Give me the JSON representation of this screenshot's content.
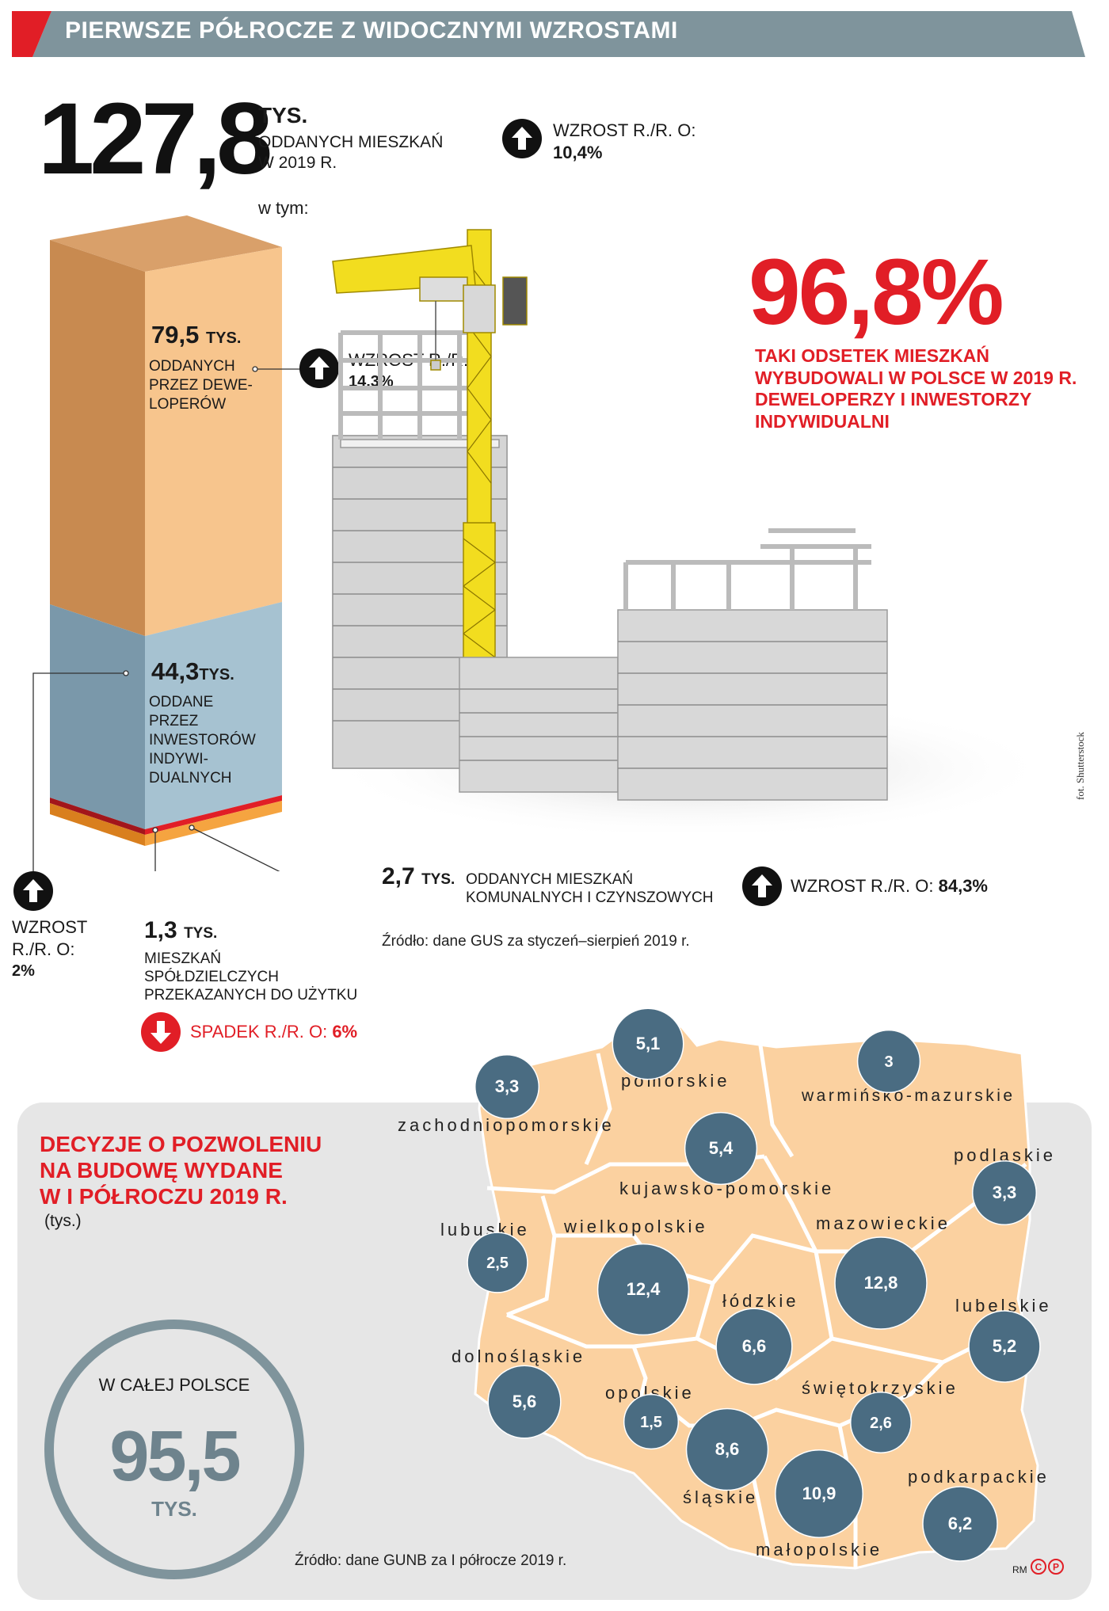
{
  "header": {
    "title": "PIERWSZE PÓŁROCZE Z WIDOCZNYMI WZROSTAMI"
  },
  "total": {
    "value": "127,8",
    "unit": "TYS.",
    "caption_line1": "ODDANYCH MIESZKAŃ",
    "caption_line2": "W 2019 R.",
    "growth_label": "WZROST R./R. O:",
    "growth_value": "10,4%",
    "including": "w tym:"
  },
  "developers": {
    "value": "79,5",
    "unit": "TYS.",
    "line1": "ODDANYCH",
    "line2": "PRZEZ DEWE-",
    "line3": "LOPERÓW",
    "growth_label": "WZROST R./R. O:",
    "growth_value": "14,3%"
  },
  "individual": {
    "value": "44,3",
    "unit": "TYS.",
    "line1": "ODDANE",
    "line2": "PRZEZ",
    "line3": "INWESTORÓW",
    "line4": "INDYWI-",
    "line5": "DUALNYCH",
    "growth_line1": "WZROST",
    "growth_line2": "R./R. O:",
    "growth_value": "2%"
  },
  "cooperative": {
    "value": "1,3",
    "unit": "TYS.",
    "line1": "MIESZKAŃ",
    "line2": "SPÓŁDZIELCZYCH",
    "line3": "PRZEKAZANYCH DO UŻYTKU",
    "decline_label": "SPADEK R./R. O:",
    "decline_value": "6%"
  },
  "municipal": {
    "value": "2,7",
    "unit": "TYS.",
    "line1": "ODDANYCH MIESZKAŃ",
    "line2": "KOMUNALNYCH I CZYNSZOWYCH",
    "growth_label": "WZROST R./R. O:",
    "growth_value": "84,3%"
  },
  "share": {
    "value": "96,8%",
    "line1": "TAKI ODSETEK MIESZKAŃ",
    "line2": "WYBUDOWALI W POLSCE W 2019 R.",
    "line3": "DEWELOPERZY I INWESTORZY",
    "line4": "INDYWIDUALNI"
  },
  "photo_credit": "fot. Shutterstock",
  "source1": "Źródło: dane GUS za styczeń–sierpień 2019 r.",
  "permits": {
    "title_line1": "DECYZJE O POZWOLENIU",
    "title_line2": "NA BUDOWĘ WYDANE",
    "title_line3": "W I PÓŁROCZU 2019 R.",
    "unit_note": "(tys.)",
    "total_label": "W CAŁEJ POLSCE",
    "total_value": "95,5",
    "total_unit": "TYS.",
    "source": "Źródło: dane GUNB za I półrocze 2019 r."
  },
  "signature": "RM",
  "chart_data": [
    {
      "type": "bar",
      "title": "Oddane mieszkania w 2019 r. (stacked)",
      "ylabel": "tys.",
      "categories": [
        "deweloperzy",
        "inwestorzy indywidualni",
        "spółdzielcze",
        "komunalne i czynszowe"
      ],
      "values": [
        79.5,
        44.3,
        1.3,
        2.7
      ],
      "total": 127.8,
      "growth_pct": [
        14.3,
        2,
        -6,
        84.3
      ],
      "total_growth_pct": 10.4
    },
    {
      "type": "scatter",
      "title": "Decyzje o pozwoleniu na budowę wydane w I półroczu 2019 r. (tys.)",
      "categories": [
        "zachodniopomorskie",
        "pomorskie",
        "warmińsko-mazurskie",
        "kujawsko-pomorskie",
        "podlaskie",
        "lubuskie",
        "wielkopolskie",
        "mazowieckie",
        "łódzkie",
        "lubelskie",
        "dolnośląskie",
        "opolskie",
        "świętokrzyskie",
        "śląskie",
        "małopolskie",
        "podkarpackie"
      ],
      "values": [
        3.3,
        5.1,
        3,
        5.4,
        3.3,
        2.5,
        12.4,
        12.8,
        6.6,
        5.2,
        5.6,
        1.5,
        2.6,
        8.6,
        10.9,
        6.2
      ],
      "labels": [
        "3,3",
        "5,1",
        "3",
        "5,4",
        "3,3",
        "2,5",
        "12,4",
        "12,8",
        "6,6",
        "5,2",
        "5,6",
        "1,5",
        "2,6",
        "8,6",
        "10,9",
        "6,2"
      ],
      "total": 95.5
    }
  ],
  "colors": {
    "accent_red": "#e11e26",
    "banner": "#7f949c",
    "orange_bar": "#f7c58d",
    "blue_bar": "#a6c2d1",
    "bubble": "#4a6c82",
    "map_fill": "#fbd1a0",
    "panel": "#e6e6e6"
  }
}
